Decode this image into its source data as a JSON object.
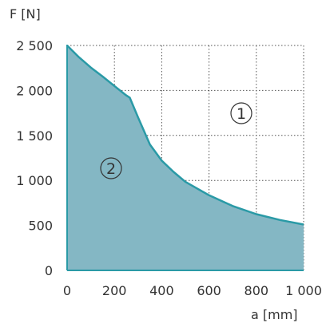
{
  "chart_data": {
    "type": "area",
    "xlabel": "a [mm]",
    "ylabel": "F [N]",
    "xlim": [
      0,
      1000
    ],
    "ylim": [
      0,
      2500
    ],
    "x_ticks": [
      "0",
      "200",
      "400",
      "600",
      "800",
      "1 000"
    ],
    "y_ticks": [
      "0",
      "500",
      "1 000",
      "1 500",
      "2 000",
      "2 500"
    ],
    "grid": true,
    "fill_color": "#84b7c4",
    "line_color": "#2a9aa6",
    "series": [
      {
        "x": [
          0,
          50,
          100,
          150,
          200,
          250,
          265,
          300,
          350,
          400,
          450,
          500,
          600,
          700,
          800,
          900,
          1000
        ],
        "values": [
          2500,
          2370,
          2255,
          2155,
          2050,
          1945,
          1920,
          1700,
          1400,
          1220,
          1095,
          985,
          835,
          715,
          625,
          560,
          510
        ]
      }
    ],
    "annotations": [
      {
        "label": "1",
        "region": "above curve"
      },
      {
        "label": "2",
        "region": "below curve"
      }
    ]
  }
}
